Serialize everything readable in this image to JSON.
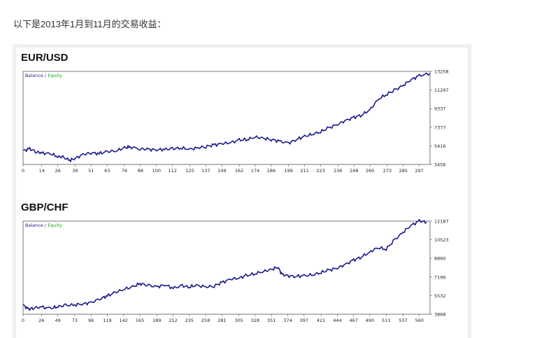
{
  "intro": "以下是2013年1月到11月的交易收益：",
  "colors": {
    "balance": "#1b1b8a",
    "equity": "#19a019",
    "frame": "#555555"
  },
  "chart_data": [
    {
      "type": "line",
      "title": "EUR/USD",
      "legend": {
        "balance": "Balance",
        "separator": " / ",
        "equity": "Equity",
        "placement": "top-left"
      },
      "x_ticks": [
        "0",
        "14",
        "26",
        "39",
        "51",
        "63",
        "76",
        "88",
        "100",
        "112",
        "125",
        "137",
        "149",
        "162",
        "174",
        "186",
        "199",
        "211",
        "223",
        "236",
        "248",
        "260",
        "273",
        "285",
        "297"
      ],
      "y_ticks": [
        "13258",
        "11297",
        "9337",
        "7377",
        "5416",
        "3456"
      ],
      "xlim": [
        0,
        305
      ],
      "ylim": [
        3456,
        13258
      ],
      "series": [
        {
          "name": "Balance",
          "x": [
            0,
            5,
            10,
            14,
            20,
            26,
            30,
            35,
            39,
            45,
            51,
            57,
            63,
            70,
            76,
            80,
            88,
            94,
            100,
            106,
            112,
            118,
            125,
            131,
            137,
            143,
            149,
            155,
            162,
            168,
            174,
            180,
            186,
            192,
            199,
            205,
            211,
            217,
            223,
            229,
            236,
            242,
            248,
            254,
            260,
            266,
            273,
            279,
            285,
            291,
            297,
            305
          ],
          "y": [
            4900,
            5100,
            4800,
            4650,
            4600,
            4300,
            4200,
            3900,
            4100,
            4500,
            4700,
            4600,
            4800,
            4900,
            5200,
            5300,
            5100,
            5050,
            5000,
            5050,
            5100,
            5200,
            5050,
            5200,
            5350,
            5500,
            5650,
            5750,
            6000,
            6100,
            6350,
            6200,
            6100,
            5900,
            5700,
            6100,
            6400,
            6650,
            6900,
            7300,
            7700,
            8100,
            8400,
            8700,
            9200,
            10300,
            10900,
            11300,
            11800,
            12400,
            12800,
            13050
          ]
        }
      ]
    },
    {
      "type": "line",
      "title": "GBP/CHF",
      "legend": {
        "balance": "Balance",
        "separator": " / ",
        "equity": "Equity",
        "placement": "top-left"
      },
      "x_ticks": [
        "0",
        "26",
        "49",
        "73",
        "96",
        "119",
        "142",
        "165",
        "189",
        "212",
        "235",
        "258",
        "281",
        "305",
        "328",
        "351",
        "374",
        "397",
        "421",
        "444",
        "467",
        "490",
        "513",
        "537",
        "560"
      ],
      "y_ticks": [
        "12187",
        "10523",
        "8860",
        "7196",
        "5532",
        "3868"
      ],
      "xlim": [
        0,
        575
      ],
      "ylim": [
        3868,
        12187
      ],
      "series": [
        {
          "name": "Balance",
          "x": [
            0,
            8,
            15,
            26,
            40,
            49,
            60,
            73,
            85,
            96,
            110,
            119,
            130,
            142,
            155,
            165,
            175,
            189,
            200,
            212,
            225,
            235,
            245,
            258,
            270,
            281,
            293,
            305,
            315,
            328,
            340,
            351,
            360,
            366,
            374,
            385,
            397,
            410,
            421,
            432,
            444,
            455,
            467,
            478,
            490,
            500,
            513,
            525,
            537,
            548,
            560,
            570
          ],
          "y": [
            4700,
            4300,
            4450,
            4500,
            4400,
            4550,
            4650,
            4700,
            4800,
            4900,
            5300,
            5500,
            5800,
            6100,
            6300,
            6600,
            6500,
            6300,
            6500,
            6200,
            6400,
            6300,
            6450,
            6300,
            6400,
            6700,
            7000,
            7100,
            7300,
            7500,
            7700,
            7850,
            8100,
            7400,
            7300,
            7250,
            7300,
            7400,
            7600,
            7800,
            8000,
            8300,
            8700,
            9000,
            9400,
            9800,
            9700,
            10500,
            11200,
            11800,
            12200,
            12100
          ]
        }
      ]
    }
  ]
}
